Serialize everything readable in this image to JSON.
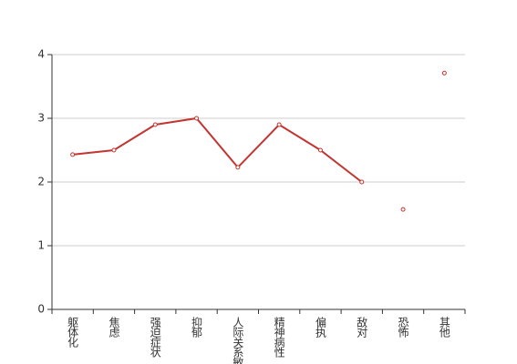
{
  "chart_data": {
    "type": "line",
    "categories": [
      "躯体化",
      "焦虑",
      "强迫症状",
      "抑郁",
      "人际关系敏感",
      "精神病性",
      "偏执",
      "敌对",
      "恐怖",
      "其他"
    ],
    "series": [
      {
        "color": "#c23531",
        "values": [
          2.43,
          2.5,
          2.9,
          3.0,
          2.23,
          2.9,
          2.5,
          2.0,
          null,
          null
        ]
      },
      {
        "color": "#c23531",
        "line": false,
        "values": [
          null,
          null,
          null,
          null,
          null,
          null,
          null,
          null,
          1.57,
          3.71
        ]
      }
    ],
    "ylim": [
      0,
      4
    ],
    "yticks": [
      0,
      1,
      2,
      3,
      4
    ],
    "grid": true
  }
}
